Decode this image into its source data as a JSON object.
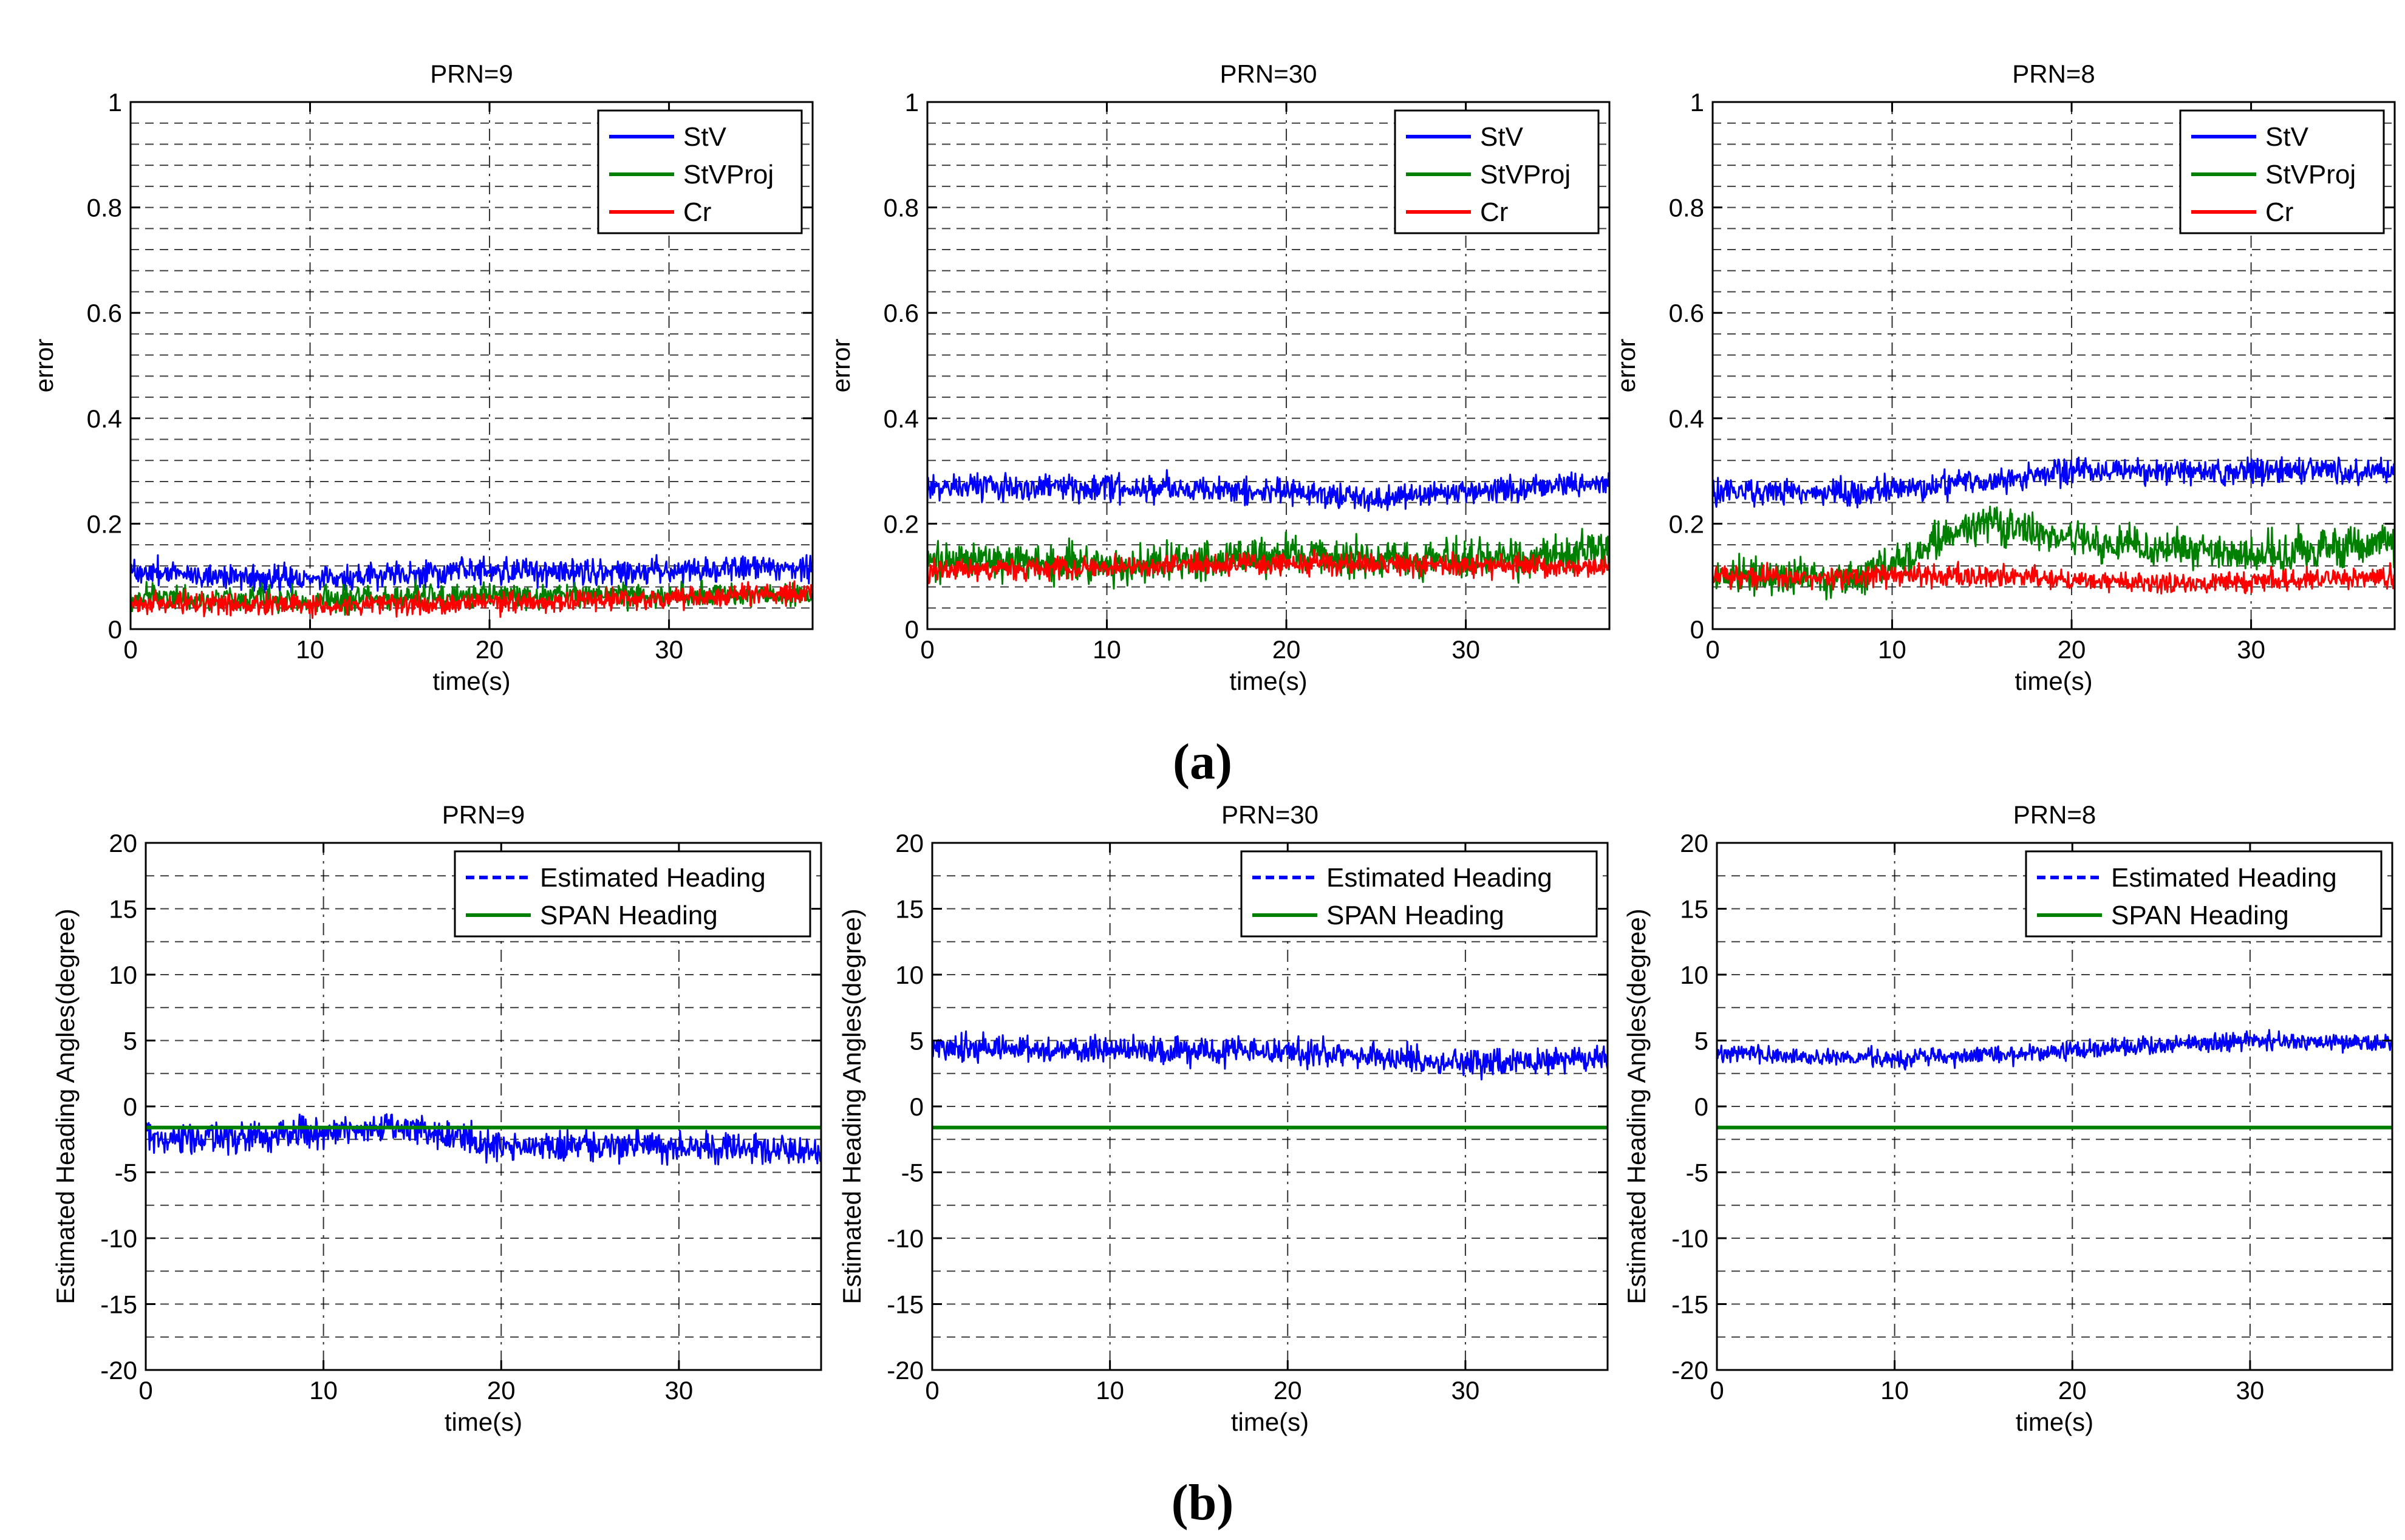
{
  "figure": {
    "panel_labels": {
      "a": "(a)",
      "b": "(b)"
    }
  },
  "chart_data": [
    {
      "type": "line",
      "title": "PRN=9",
      "xlabel": "time(s)",
      "ylabel": "error",
      "xlim": [
        0,
        38
      ],
      "ylim": [
        0,
        1
      ],
      "xticks": [
        0,
        10,
        20,
        30
      ],
      "yticks": [
        0,
        0.2,
        0.4,
        0.6,
        0.8,
        1
      ],
      "ytick_labels": [
        "0",
        "0.2",
        "0.4",
        "0.6",
        "0.8",
        "1"
      ],
      "legend": {
        "location": "top-right"
      },
      "series": [
        {
          "name": "StV",
          "color": "#0000ff",
          "style": "solid",
          "noise": 0.012,
          "points": [
            [
              0,
              0.11
            ],
            [
              10,
              0.095
            ],
            [
              20,
              0.11
            ],
            [
              30,
              0.11
            ],
            [
              38,
              0.12
            ]
          ]
        },
        {
          "name": "StVProj",
          "color": "#008000",
          "style": "solid",
          "noise": 0.012,
          "points": [
            [
              0,
              0.06
            ],
            [
              10,
              0.055
            ],
            [
              20,
              0.065
            ],
            [
              30,
              0.065
            ],
            [
              38,
              0.065
            ]
          ]
        },
        {
          "name": "Cr",
          "color": "#ff0000",
          "style": "solid",
          "noise": 0.01,
          "points": [
            [
              0,
              0.05
            ],
            [
              10,
              0.045
            ],
            [
              20,
              0.05
            ],
            [
              30,
              0.06
            ],
            [
              38,
              0.07
            ]
          ]
        }
      ]
    },
    {
      "type": "line",
      "title": "PRN=30",
      "xlabel": "time(s)",
      "ylabel": "error",
      "xlim": [
        0,
        38
      ],
      "ylim": [
        0,
        1
      ],
      "xticks": [
        0,
        10,
        20,
        30
      ],
      "yticks": [
        0,
        0.2,
        0.4,
        0.6,
        0.8,
        1
      ],
      "ytick_labels": [
        "0",
        "0.2",
        "0.4",
        "0.6",
        "0.8",
        "1"
      ],
      "legend": {
        "location": "top-right"
      },
      "series": [
        {
          "name": "StV",
          "color": "#0000ff",
          "style": "solid",
          "noise": 0.012,
          "points": [
            [
              0,
              0.27
            ],
            [
              10,
              0.27
            ],
            [
              20,
              0.26
            ],
            [
              25,
              0.25
            ],
            [
              38,
              0.28
            ]
          ]
        },
        {
          "name": "StVProj",
          "color": "#008000",
          "style": "solid",
          "noise": 0.018,
          "points": [
            [
              0,
              0.13
            ],
            [
              10,
              0.12
            ],
            [
              20,
              0.14
            ],
            [
              30,
              0.13
            ],
            [
              38,
              0.15
            ]
          ]
        },
        {
          "name": "Cr",
          "color": "#ff0000",
          "style": "solid",
          "noise": 0.01,
          "points": [
            [
              0,
              0.11
            ],
            [
              10,
              0.12
            ],
            [
              20,
              0.125
            ],
            [
              30,
              0.12
            ],
            [
              38,
              0.12
            ]
          ]
        }
      ]
    },
    {
      "type": "line",
      "title": "PRN=8",
      "xlabel": "time(s)",
      "ylabel": "error",
      "xlim": [
        0,
        38
      ],
      "ylim": [
        0,
        1
      ],
      "xticks": [
        0,
        10,
        20,
        30
      ],
      "yticks": [
        0,
        0.2,
        0.4,
        0.6,
        0.8,
        1
      ],
      "ytick_labels": [
        "0",
        "0.2",
        "0.4",
        "0.6",
        "0.8",
        "1"
      ],
      "legend": {
        "location": "top-right"
      },
      "series": [
        {
          "name": "StV",
          "color": "#0000ff",
          "style": "solid",
          "noise": 0.012,
          "points": [
            [
              0,
              0.26
            ],
            [
              8,
              0.26
            ],
            [
              15,
              0.28
            ],
            [
              20,
              0.3
            ],
            [
              38,
              0.3
            ]
          ]
        },
        {
          "name": "StVProj",
          "color": "#008000",
          "style": "solid",
          "noise": 0.018,
          "points": [
            [
              0,
              0.1
            ],
            [
              8,
              0.1
            ],
            [
              15,
              0.2
            ],
            [
              20,
              0.17
            ],
            [
              30,
              0.14
            ],
            [
              38,
              0.16
            ]
          ]
        },
        {
          "name": "Cr",
          "color": "#ff0000",
          "style": "solid",
          "noise": 0.01,
          "points": [
            [
              0,
              0.1
            ],
            [
              15,
              0.1
            ],
            [
              25,
              0.085
            ],
            [
              38,
              0.1
            ]
          ]
        }
      ]
    },
    {
      "type": "line",
      "title": "PRN=9",
      "xlabel": "time(s)",
      "ylabel": "Estimated Heading Angles(degree)",
      "xlim": [
        0,
        38
      ],
      "ylim": [
        -20,
        20
      ],
      "xticks": [
        0,
        10,
        20,
        30
      ],
      "yticks": [
        -20,
        -15,
        -10,
        -5,
        0,
        5,
        10,
        15,
        20
      ],
      "ytick_labels": [
        "-20",
        "-15",
        "-10",
        "-5",
        "0",
        "5",
        "10",
        "15",
        "20"
      ],
      "legend": {
        "location": "top-right"
      },
      "series": [
        {
          "name": "Estimated Heading",
          "color": "#0000ff",
          "style": "dashed",
          "noise": 0.55,
          "points": [
            [
              0,
              -2.5
            ],
            [
              10,
              -2.0
            ],
            [
              14,
              -1.5
            ],
            [
              20,
              -3.0
            ],
            [
              30,
              -3.0
            ],
            [
              38,
              -3.5
            ]
          ]
        },
        {
          "name": "SPAN Heading",
          "color": "#008000",
          "style": "solid",
          "noise": 0,
          "points": [
            [
              0,
              -1.6
            ],
            [
              38,
              -1.6
            ]
          ]
        }
      ]
    },
    {
      "type": "line",
      "title": "PRN=30",
      "xlabel": "time(s)",
      "ylabel": "Estimated Heading Angles(degree)",
      "xlim": [
        0,
        38
      ],
      "ylim": [
        -20,
        20
      ],
      "xticks": [
        0,
        10,
        20,
        30
      ],
      "yticks": [
        -20,
        -15,
        -10,
        -5,
        0,
        5,
        10,
        15,
        20
      ],
      "ytick_labels": [
        "-20",
        "-15",
        "-10",
        "-5",
        "0",
        "5",
        "10",
        "15",
        "20"
      ],
      "legend": {
        "location": "top-right"
      },
      "series": [
        {
          "name": "Estimated Heading",
          "color": "#0000ff",
          "style": "dashed",
          "noise": 0.5,
          "points": [
            [
              0,
              4.5
            ],
            [
              10,
              4.3
            ],
            [
              20,
              4.2
            ],
            [
              30,
              3.2
            ],
            [
              38,
              3.8
            ]
          ]
        },
        {
          "name": "SPAN Heading",
          "color": "#008000",
          "style": "solid",
          "noise": 0,
          "points": [
            [
              0,
              -1.6
            ],
            [
              38,
              -1.6
            ]
          ]
        }
      ]
    },
    {
      "type": "line",
      "title": "PRN=8",
      "xlabel": "time(s)",
      "ylabel": "Estimated Heading Angles(degree)",
      "xlim": [
        0,
        38
      ],
      "ylim": [
        -20,
        20
      ],
      "xticks": [
        0,
        10,
        20,
        30
      ],
      "yticks": [
        -20,
        -15,
        -10,
        -5,
        0,
        5,
        10,
        15,
        20
      ],
      "ytick_labels": [
        "-20",
        "-15",
        "-10",
        "-5",
        "0",
        "5",
        "10",
        "15",
        "20"
      ],
      "legend": {
        "location": "top-right"
      },
      "series": [
        {
          "name": "Estimated Heading",
          "color": "#0000ff",
          "style": "dashed",
          "noise": 0.35,
          "points": [
            [
              0,
              4.0
            ],
            [
              10,
              3.6
            ],
            [
              20,
              4.2
            ],
            [
              30,
              5.0
            ],
            [
              38,
              4.8
            ]
          ]
        },
        {
          "name": "SPAN Heading",
          "color": "#008000",
          "style": "solid",
          "noise": 0,
          "points": [
            [
              0,
              -1.6
            ],
            [
              38,
              -1.6
            ]
          ]
        }
      ]
    }
  ]
}
